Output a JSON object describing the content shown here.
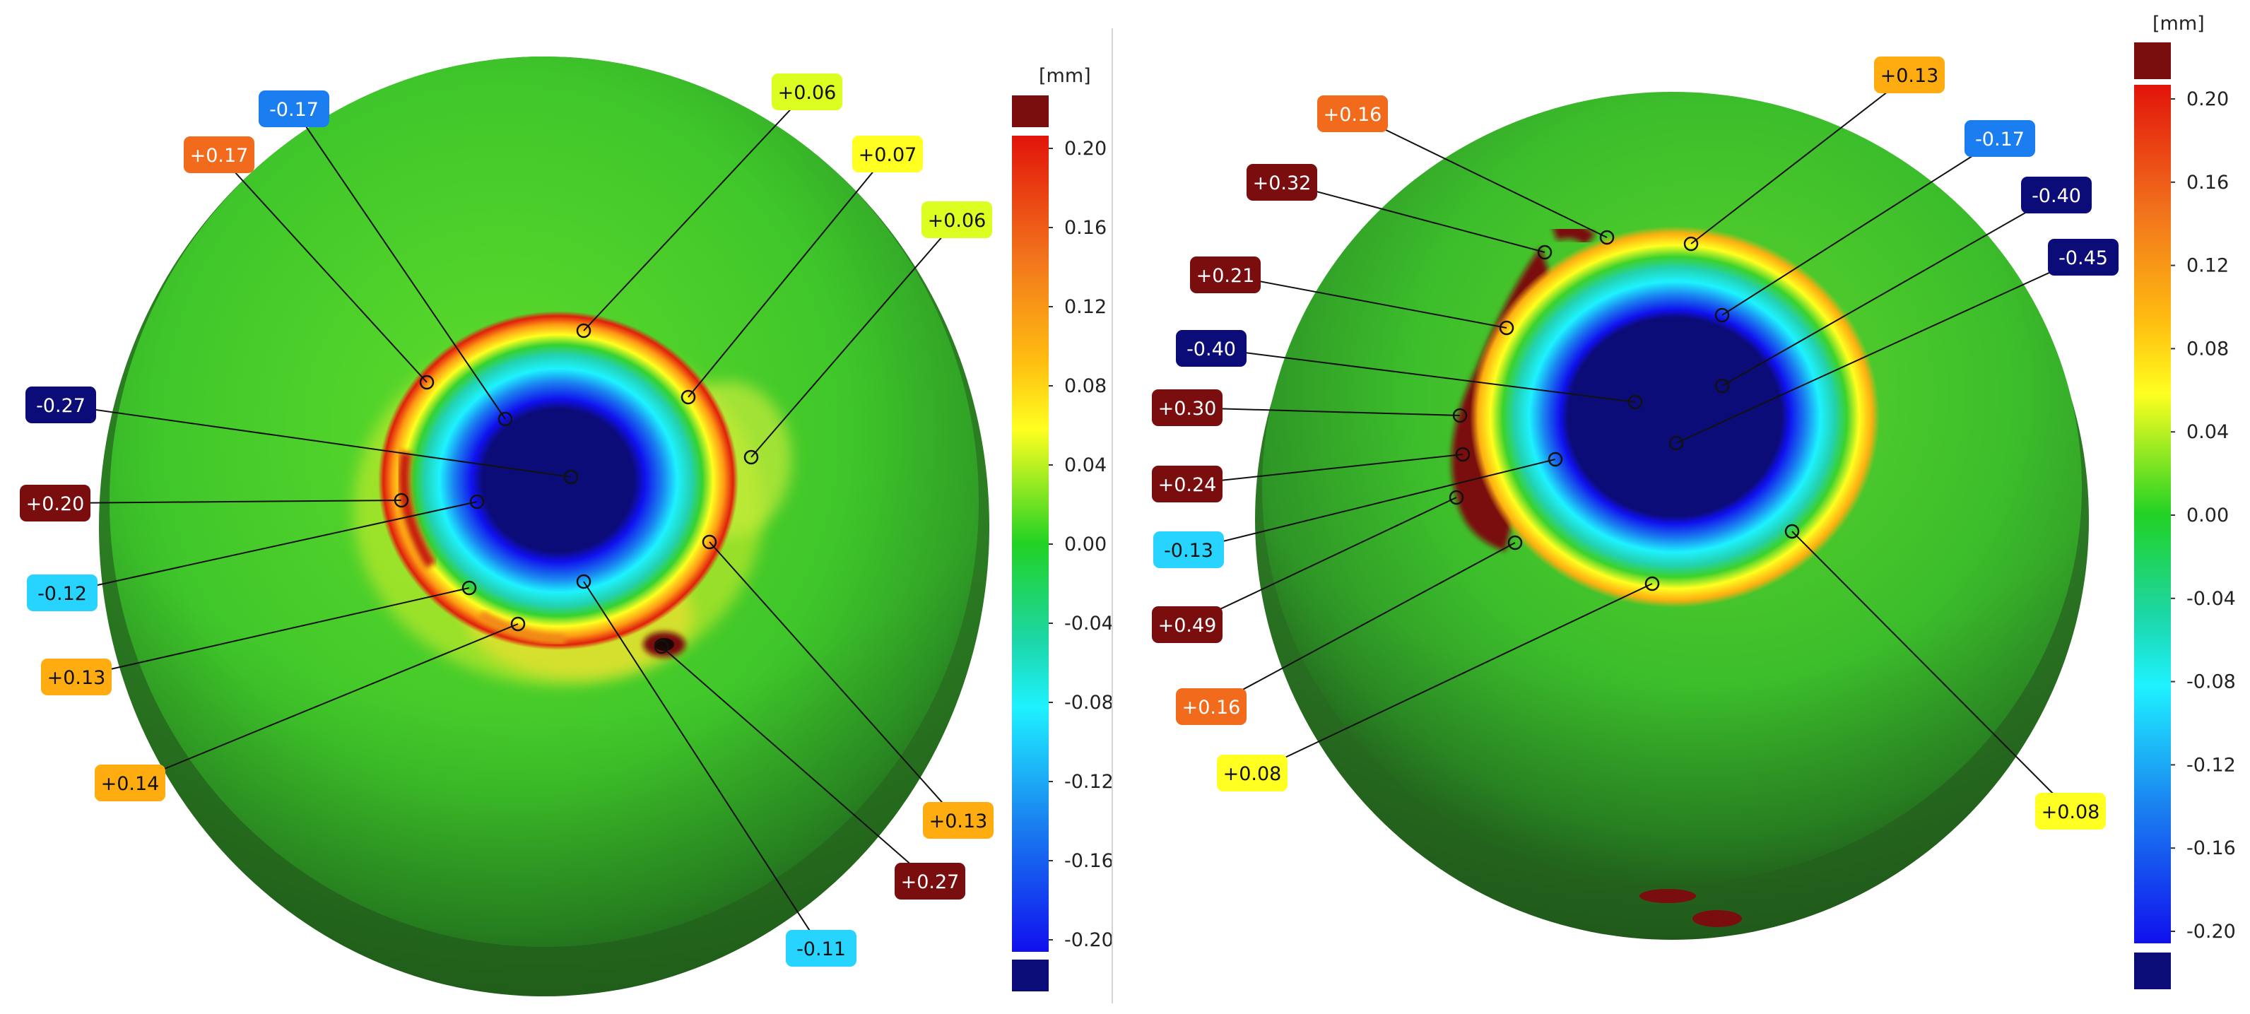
{
  "units_label": "[mm]",
  "colorbar_ticks": [
    "0.20",
    "0.16",
    "0.12",
    "0.08",
    "0.04",
    "0.00",
    "-0.04",
    "-0.08",
    "-0.12",
    "-0.16",
    "-0.20"
  ],
  "colors": {
    "deep_red": "#7a0e0e",
    "orange": "#f26a1b",
    "amber": "#ffac10",
    "yellow": "#ffff21",
    "yellow_green": "#dcff21",
    "light_cyan": "#26d4ff",
    "blue": "#1a7ef0",
    "navy": "#0c0c78",
    "surface_green": "#3cc62c"
  },
  "panels": [
    {
      "callouts": [
        {
          "label": "-0.17",
          "color": "#1a7ef0",
          "light": true
        },
        {
          "label": "+0.06",
          "color": "#dcff21",
          "light": false
        },
        {
          "label": "+0.17",
          "color": "#f26a1b",
          "light": true
        },
        {
          "label": "+0.07",
          "color": "#ffff21",
          "light": false
        },
        {
          "label": "+0.06",
          "color": "#dcff21",
          "light": false
        },
        {
          "label": "-0.27",
          "color": "#0c0c78",
          "light": true
        },
        {
          "label": "+0.20",
          "color": "#7a0e0e",
          "light": true
        },
        {
          "label": "-0.12",
          "color": "#26d4ff",
          "light": false
        },
        {
          "label": "+0.13",
          "color": "#ffac10",
          "light": false
        },
        {
          "label": "+0.14",
          "color": "#ffac10",
          "light": false
        },
        {
          "label": "+0.13",
          "color": "#ffac10",
          "light": false
        },
        {
          "label": "+0.27",
          "color": "#7a0e0e",
          "light": true
        },
        {
          "label": "-0.11",
          "color": "#26d4ff",
          "light": false
        }
      ]
    },
    {
      "callouts": [
        {
          "label": "+0.13",
          "color": "#ffac10",
          "light": false
        },
        {
          "label": "+0.16",
          "color": "#f26a1b",
          "light": true
        },
        {
          "label": "-0.17",
          "color": "#1a7ef0",
          "light": true
        },
        {
          "label": "+0.32",
          "color": "#7a0e0e",
          "light": true
        },
        {
          "label": "-0.40",
          "color": "#0c0c78",
          "light": true
        },
        {
          "label": "-0.45",
          "color": "#0c0c78",
          "light": true
        },
        {
          "label": "+0.21",
          "color": "#7a0e0e",
          "light": true
        },
        {
          "label": "-0.40",
          "color": "#0c0c78",
          "light": true
        },
        {
          "label": "+0.30",
          "color": "#7a0e0e",
          "light": true
        },
        {
          "label": "+0.24",
          "color": "#7a0e0e",
          "light": true
        },
        {
          "label": "-0.13",
          "color": "#26d4ff",
          "light": false
        },
        {
          "label": "+0.49",
          "color": "#7a0e0e",
          "light": true
        },
        {
          "label": "+0.16",
          "color": "#f26a1b",
          "light": true
        },
        {
          "label": "+0.08",
          "color": "#ffff21",
          "light": false
        },
        {
          "label": "+0.08",
          "color": "#ffff21",
          "light": false
        }
      ]
    }
  ]
}
